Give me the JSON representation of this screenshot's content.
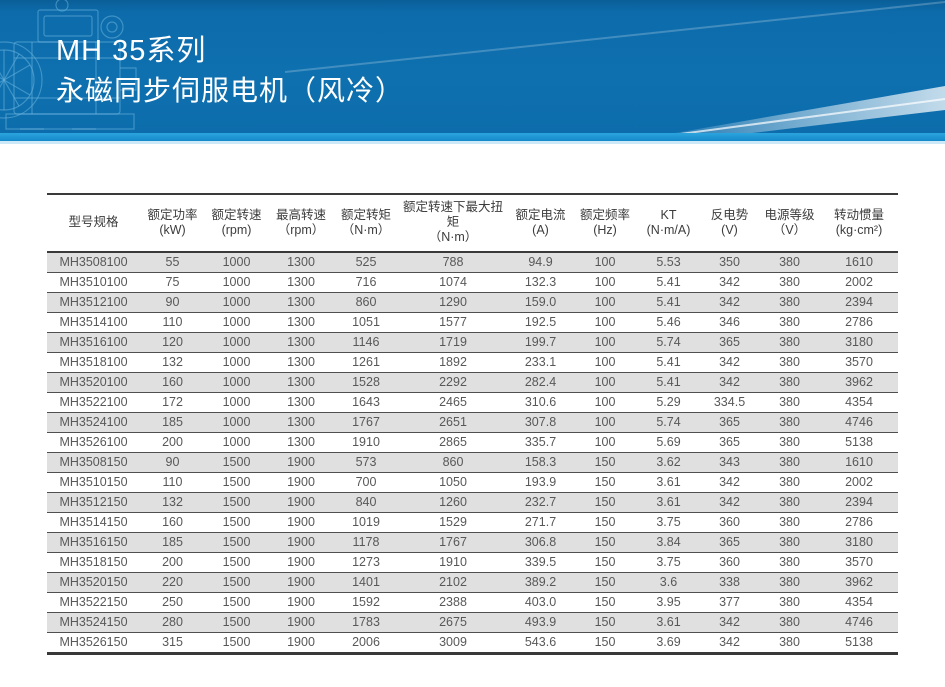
{
  "header": {
    "title_line1": "MH 35系列",
    "title_line2": "永磁同步伺服电机（风冷）",
    "bg_color": "#0e70af",
    "accent_strip_color": "#1b97d6",
    "motor_icon": "motor-line-art-icon"
  },
  "table": {
    "columns": [
      {
        "label": "型号规格",
        "unit": ""
      },
      {
        "label": "额定功率",
        "unit": "(kW)"
      },
      {
        "label": "额定转速",
        "unit": "(rpm)"
      },
      {
        "label": "最高转速",
        "unit": "（rpm）"
      },
      {
        "label": "额定转矩",
        "unit": "（N·m）"
      },
      {
        "label": "额定转速下最大扭矩",
        "unit": "（N·m）"
      },
      {
        "label": "额定电流",
        "unit": "(A)"
      },
      {
        "label": "额定频率",
        "unit": "(Hz)"
      },
      {
        "label": "KT",
        "unit": "(N·m/A)"
      },
      {
        "label": "反电势",
        "unit": "(V)"
      },
      {
        "label": "电源等级",
        "unit": "（V）"
      },
      {
        "label": "转动惯量",
        "unit": "(kg·cm²)"
      }
    ],
    "rows": [
      [
        "MH3508100",
        "55",
        "1000",
        "1300",
        "525",
        "788",
        "94.9",
        "100",
        "5.53",
        "350",
        "380",
        "1610"
      ],
      [
        "MH3510100",
        "75",
        "1000",
        "1300",
        "716",
        "1074",
        "132.3",
        "100",
        "5.41",
        "342",
        "380",
        "2002"
      ],
      [
        "MH3512100",
        "90",
        "1000",
        "1300",
        "860",
        "1290",
        "159.0",
        "100",
        "5.41",
        "342",
        "380",
        "2394"
      ],
      [
        "MH3514100",
        "110",
        "1000",
        "1300",
        "1051",
        "1577",
        "192.5",
        "100",
        "5.46",
        "346",
        "380",
        "2786"
      ],
      [
        "MH3516100",
        "120",
        "1000",
        "1300",
        "1146",
        "1719",
        "199.7",
        "100",
        "5.74",
        "365",
        "380",
        "3180"
      ],
      [
        "MH3518100",
        "132",
        "1000",
        "1300",
        "1261",
        "1892",
        "233.1",
        "100",
        "5.41",
        "342",
        "380",
        "3570"
      ],
      [
        "MH3520100",
        "160",
        "1000",
        "1300",
        "1528",
        "2292",
        "282.4",
        "100",
        "5.41",
        "342",
        "380",
        "3962"
      ],
      [
        "MH3522100",
        "172",
        "1000",
        "1300",
        "1643",
        "2465",
        "310.6",
        "100",
        "5.29",
        "334.5",
        "380",
        "4354"
      ],
      [
        "MH3524100",
        "185",
        "1000",
        "1300",
        "1767",
        "2651",
        "307.8",
        "100",
        "5.74",
        "365",
        "380",
        "4746"
      ],
      [
        "MH3526100",
        "200",
        "1000",
        "1300",
        "1910",
        "2865",
        "335.7",
        "100",
        "5.69",
        "365",
        "380",
        "5138"
      ],
      [
        "MH3508150",
        "90",
        "1500",
        "1900",
        "573",
        "860",
        "158.3",
        "150",
        "3.62",
        "343",
        "380",
        "1610"
      ],
      [
        "MH3510150",
        "110",
        "1500",
        "1900",
        "700",
        "1050",
        "193.9",
        "150",
        "3.61",
        "342",
        "380",
        "2002"
      ],
      [
        "MH3512150",
        "132",
        "1500",
        "1900",
        "840",
        "1260",
        "232.7",
        "150",
        "3.61",
        "342",
        "380",
        "2394"
      ],
      [
        "MH3514150",
        "160",
        "1500",
        "1900",
        "1019",
        "1529",
        "271.7",
        "150",
        "3.75",
        "360",
        "380",
        "2786"
      ],
      [
        "MH3516150",
        "185",
        "1500",
        "1900",
        "1178",
        "1767",
        "306.8",
        "150",
        "3.84",
        "365",
        "380",
        "3180"
      ],
      [
        "MH3518150",
        "200",
        "1500",
        "1900",
        "1273",
        "1910",
        "339.5",
        "150",
        "3.75",
        "360",
        "380",
        "3570"
      ],
      [
        "MH3520150",
        "220",
        "1500",
        "1900",
        "1401",
        "2102",
        "389.2",
        "150",
        "3.6",
        "338",
        "380",
        "3962"
      ],
      [
        "MH3522150",
        "250",
        "1500",
        "1900",
        "1592",
        "2388",
        "403.0",
        "150",
        "3.95",
        "377",
        "380",
        "4354"
      ],
      [
        "MH3524150",
        "280",
        "1500",
        "1900",
        "1783",
        "2675",
        "493.9",
        "150",
        "3.61",
        "342",
        "380",
        "4746"
      ],
      [
        "MH3526150",
        "315",
        "1500",
        "1900",
        "2006",
        "3009",
        "543.6",
        "150",
        "3.69",
        "342",
        "380",
        "5138"
      ]
    ]
  }
}
